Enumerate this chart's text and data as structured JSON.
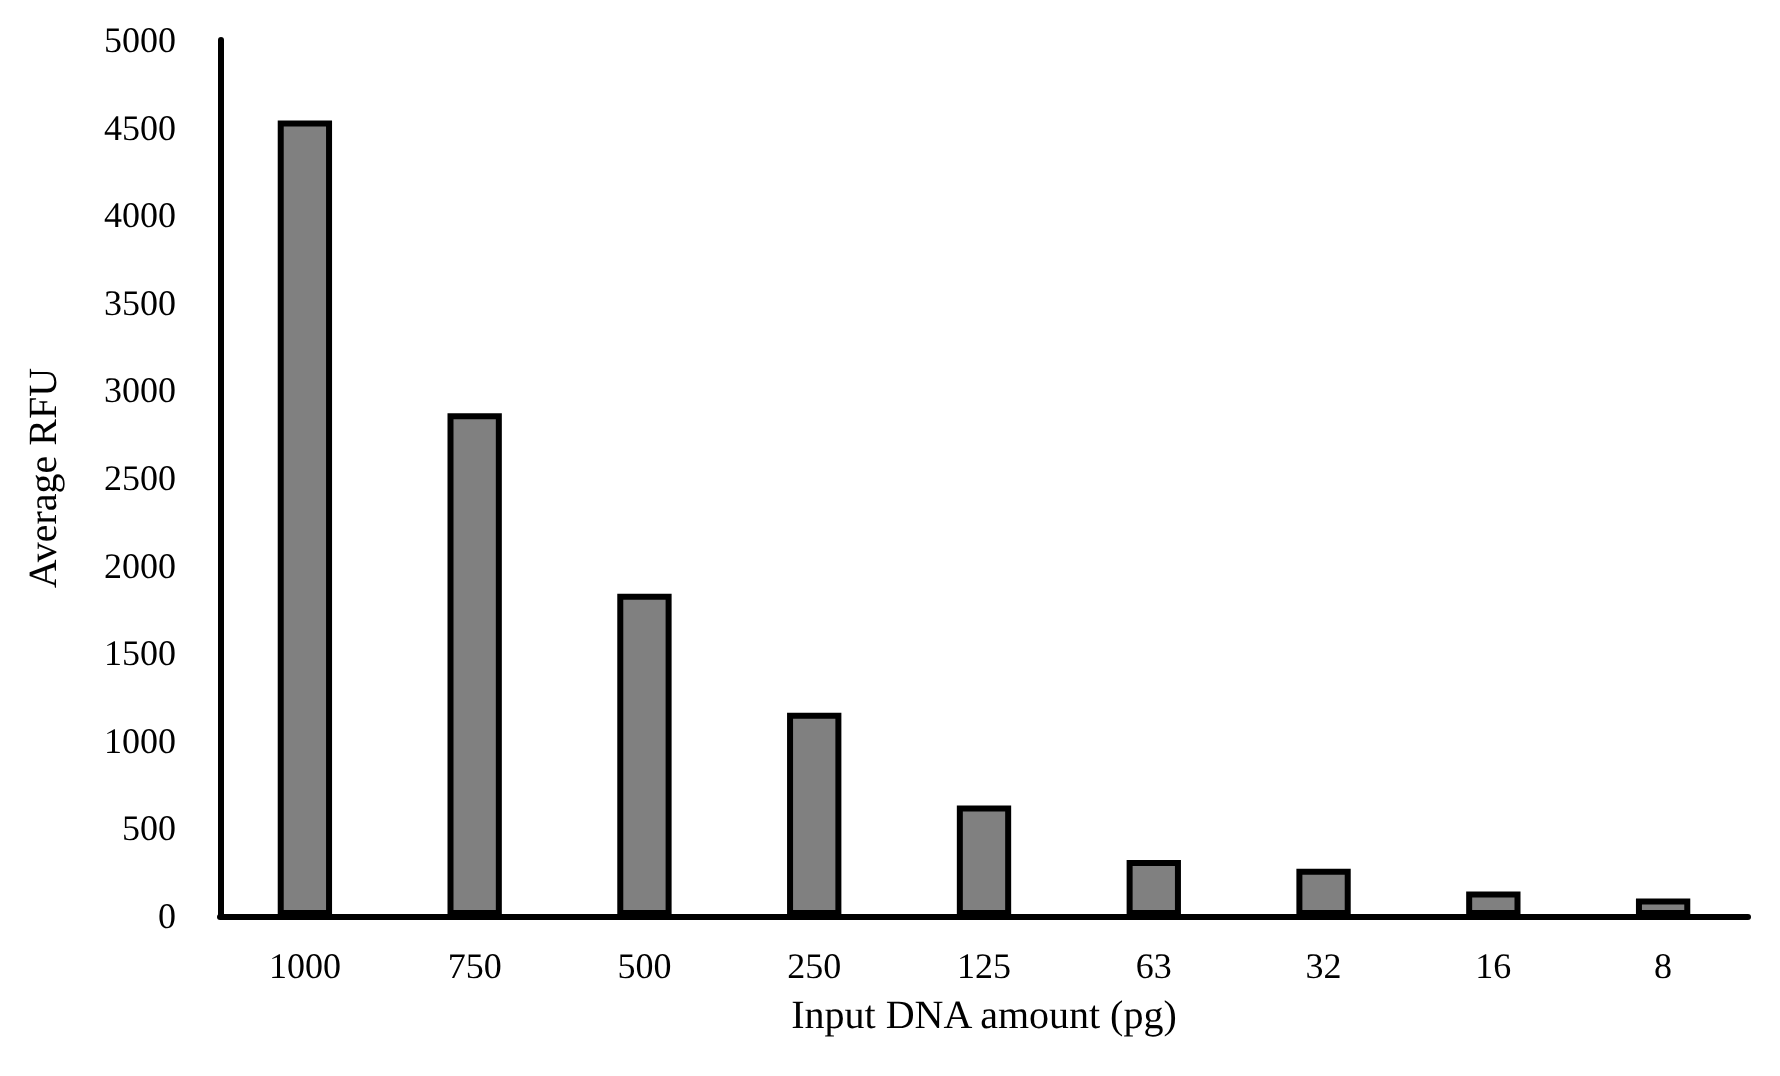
{
  "chart_data": {
    "type": "bar",
    "xlabel": "Input DNA amount (pg)",
    "ylabel": "Average RFU",
    "categories": [
      "1000",
      "750",
      "500",
      "250",
      "125",
      "63",
      "32",
      "16",
      "8"
    ],
    "values": [
      4540,
      2870,
      1840,
      1160,
      630,
      320,
      270,
      140,
      100
    ],
    "color": "#808080",
    "ylim": [
      0,
      5000
    ],
    "yticks": [
      0,
      500,
      1000,
      1500,
      2000,
      2500,
      3000,
      3500,
      4000,
      4500,
      5000
    ],
    "grid": false
  }
}
